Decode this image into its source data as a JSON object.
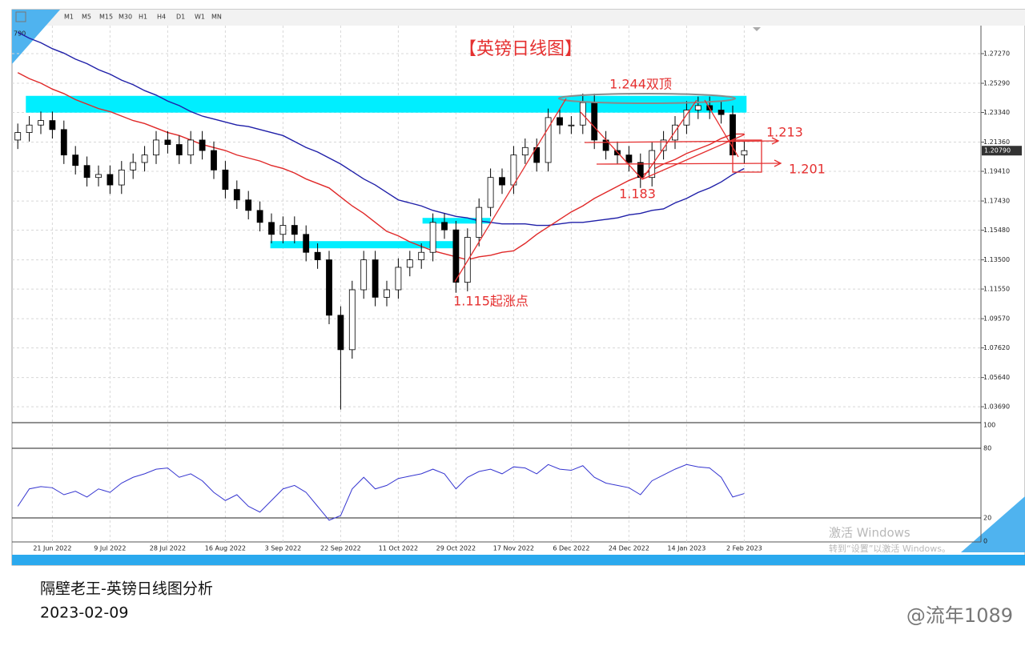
{
  "chart_data": {
    "type": "candlestick",
    "title": "【英镑日线图】",
    "corner_label": "790",
    "categories": [
      null,
      null,
      null,
      "21 Jun 2022",
      null,
      null,
      null,
      null,
      "9 Jul 2022",
      null,
      null,
      null,
      null,
      "28 Jul 2022",
      null,
      null,
      null,
      null,
      "16 Aug 2022",
      null,
      null,
      null,
      null,
      "3 Sep 2022",
      null,
      null,
      null,
      null,
      "22 Sep 2022",
      null,
      null,
      null,
      null,
      "11 Oct 2022",
      null,
      null,
      null,
      null,
      "29 Oct 2022",
      null,
      null,
      null,
      null,
      "17 Nov 2022",
      null,
      null,
      null,
      null,
      "6 Dec 2022",
      null,
      null,
      null,
      null,
      "24 Dec 2022",
      null,
      null,
      null,
      null,
      "14 Jan 2023",
      null,
      null,
      null,
      null,
      "2 Feb 2023"
    ],
    "open": [
      1.215,
      1.22,
      1.225,
      1.228,
      1.222,
      1.205,
      1.198,
      1.19,
      1.192,
      1.185,
      1.195,
      1.2,
      1.205,
      1.215,
      1.212,
      1.205,
      1.215,
      1.208,
      1.195,
      1.182,
      1.175,
      1.168,
      1.16,
      1.152,
      1.158,
      1.152,
      1.14,
      1.135,
      1.098,
      1.075,
      1.115,
      1.135,
      1.11,
      1.115,
      1.13,
      1.135,
      1.14,
      1.16,
      1.155,
      1.12,
      1.15,
      1.17,
      1.19,
      1.185,
      1.205,
      1.21,
      1.2,
      1.23,
      1.225,
      1.225,
      1.24,
      1.215,
      1.208,
      1.205,
      1.2,
      1.19,
      1.208,
      1.215,
      1.225,
      1.235,
      1.238,
      1.235,
      1.232,
      1.205
    ],
    "high": [
      1.226,
      1.231,
      1.234,
      1.234,
      1.228,
      1.211,
      1.204,
      1.198,
      1.198,
      1.201,
      1.206,
      1.211,
      1.221,
      1.221,
      1.218,
      1.221,
      1.221,
      1.214,
      1.201,
      1.188,
      1.181,
      1.174,
      1.166,
      1.164,
      1.164,
      1.158,
      1.146,
      1.141,
      1.104,
      1.121,
      1.141,
      1.141,
      1.121,
      1.136,
      1.141,
      1.146,
      1.166,
      1.166,
      1.161,
      1.156,
      1.176,
      1.196,
      1.196,
      1.211,
      1.216,
      1.216,
      1.236,
      1.236,
      1.231,
      1.246,
      1.246,
      1.221,
      1.214,
      1.211,
      1.206,
      1.214,
      1.221,
      1.231,
      1.241,
      1.244,
      1.244,
      1.241,
      1.238,
      1.214
    ],
    "low": [
      1.209,
      1.214,
      1.219,
      1.216,
      1.199,
      1.192,
      1.184,
      1.184,
      1.179,
      1.179,
      1.189,
      1.194,
      1.199,
      1.206,
      1.199,
      1.199,
      1.202,
      1.189,
      1.176,
      1.169,
      1.162,
      1.154,
      1.146,
      1.146,
      1.146,
      1.134,
      1.129,
      1.092,
      1.035,
      1.069,
      1.109,
      1.104,
      1.104,
      1.109,
      1.124,
      1.129,
      1.134,
      1.149,
      1.113,
      1.114,
      1.144,
      1.164,
      1.179,
      1.179,
      1.199,
      1.194,
      1.194,
      1.219,
      1.219,
      1.219,
      1.209,
      1.202,
      1.199,
      1.194,
      1.183,
      1.184,
      1.202,
      1.209,
      1.219,
      1.229,
      1.229,
      1.226,
      1.199,
      1.199
    ],
    "close": [
      1.22,
      1.225,
      1.228,
      1.222,
      1.205,
      1.198,
      1.19,
      1.192,
      1.185,
      1.195,
      1.2,
      1.205,
      1.215,
      1.212,
      1.205,
      1.215,
      1.208,
      1.195,
      1.182,
      1.175,
      1.168,
      1.16,
      1.152,
      1.158,
      1.152,
      1.14,
      1.135,
      1.098,
      1.075,
      1.115,
      1.135,
      1.11,
      1.115,
      1.13,
      1.135,
      1.14,
      1.16,
      1.155,
      1.12,
      1.15,
      1.17,
      1.19,
      1.185,
      1.205,
      1.21,
      1.2,
      1.23,
      1.225,
      1.225,
      1.24,
      1.215,
      1.208,
      1.205,
      1.2,
      1.19,
      1.208,
      1.215,
      1.225,
      1.235,
      1.238,
      1.235,
      1.232,
      1.205,
      1.2079
    ],
    "up_color": "#ffffff",
    "down_color": "#000000",
    "series": [
      {
        "color": "#1f1fa8",
        "values": [
          1.287,
          1.283,
          1.28,
          1.276,
          1.273,
          1.269,
          1.266,
          1.262,
          1.259,
          1.255,
          1.252,
          1.248,
          1.245,
          1.241,
          1.238,
          1.234,
          1.231,
          1.229,
          1.227,
          1.225,
          1.224,
          1.222,
          1.22,
          1.218,
          1.214,
          1.21,
          1.207,
          1.203,
          1.199,
          1.194,
          1.189,
          1.185,
          1.18,
          1.175,
          1.173,
          1.171,
          1.168,
          1.166,
          1.164,
          1.163,
          1.161,
          1.16,
          1.159,
          1.159,
          1.159,
          1.158,
          1.158,
          1.159,
          1.16,
          1.16,
          1.161,
          1.162,
          1.163,
          1.165,
          1.166,
          1.168,
          1.169,
          1.173,
          1.176,
          1.18,
          1.183,
          1.187,
          1.192,
          1.196
        ]
      },
      {
        "color": "#e02828",
        "values": [
          1.26,
          1.256,
          1.253,
          1.249,
          1.246,
          1.242,
          1.239,
          1.236,
          1.234,
          1.231,
          1.228,
          1.226,
          1.223,
          1.22,
          1.218,
          1.215,
          1.212,
          1.21,
          1.208,
          1.205,
          1.203,
          1.201,
          1.198,
          1.196,
          1.193,
          1.189,
          1.186,
          1.183,
          1.177,
          1.171,
          1.166,
          1.16,
          1.154,
          1.151,
          1.147,
          1.144,
          1.141,
          1.139,
          1.137,
          1.135,
          1.137,
          1.138,
          1.14,
          1.141,
          1.146,
          1.152,
          1.157,
          1.162,
          1.167,
          1.171,
          1.176,
          1.18,
          1.184,
          1.188,
          1.191,
          1.195,
          1.199,
          1.202,
          1.206,
          1.209,
          1.212,
          1.216,
          1.219,
          1.219
        ]
      }
    ],
    "zones": [
      {
        "from": 1.2333,
        "to": 1.2445,
        "start": 1.2,
        "end": 63.7
      },
      {
        "from": 1.1427,
        "to": 1.1475,
        "start": 22.4,
        "end": 38.4
      },
      {
        "from": 1.1592,
        "to": 1.163,
        "start": 35.6,
        "end": 41.5
      }
    ],
    "zone_color": "#00eeff",
    "ylim": [
      1.0268,
      1.2898
    ],
    "yticks": [
      {
        "value": 1.2727,
        "label": "1.27270"
      },
      {
        "value": 1.2529,
        "label": "1.25290"
      },
      {
        "value": 1.2334,
        "label": "1.23340"
      },
      {
        "value": 1.2136,
        "label": "1.21360"
      },
      {
        "value": 1.1941,
        "label": "1.19410"
      },
      {
        "value": 1.1743,
        "label": "1.17430"
      },
      {
        "value": 1.1548,
        "label": "1.15480"
      },
      {
        "value": 1.135,
        "label": "1.13500"
      },
      {
        "value": 1.1155,
        "label": "1.11550"
      },
      {
        "value": 1.0957,
        "label": "1.09570"
      },
      {
        "value": 1.0762,
        "label": "1.07620"
      },
      {
        "value": 1.0564,
        "label": "1.05640"
      },
      {
        "value": 1.0369,
        "label": "1.03690"
      }
    ],
    "last_price": {
      "value": 1.2079,
      "label": "1.20790"
    },
    "grid": true,
    "annotations": {
      "double_top": "1.244双顶",
      "level_1213": "1.213",
      "level_1201": "1.201",
      "low_1183": "1.183",
      "start_1115": "1.115起涨点"
    },
    "rsi": {
      "color": "#3535d0",
      "ylim": [
        0,
        100
      ],
      "yticks": [
        100,
        80,
        20,
        0
      ],
      "values": [
        30,
        45,
        47,
        46,
        40,
        43,
        38,
        45,
        42,
        50,
        55,
        58,
        62,
        63,
        55,
        58,
        52,
        42,
        35,
        40,
        30,
        25,
        35,
        45,
        48,
        42,
        30,
        18,
        22,
        45,
        55,
        45,
        48,
        54,
        56,
        58,
        62,
        58,
        45,
        55,
        60,
        62,
        58,
        64,
        63,
        58,
        66,
        62,
        61,
        65,
        55,
        50,
        48,
        46,
        40,
        52,
        57,
        62,
        66,
        64,
        63,
        55,
        38,
        41
      ]
    }
  },
  "toolbar": [
    "M1",
    "M5",
    "M15",
    "M30",
    "H1",
    "H4",
    "D1",
    "W1",
    "MN"
  ],
  "watermark": {
    "title": "激活 Windows",
    "hint": "转到“设置”以激活 Windows。"
  },
  "footer": {
    "title": "隔壁老王-英镑日线图分析",
    "date": "2023-02-09",
    "signature": "@流年1089"
  }
}
